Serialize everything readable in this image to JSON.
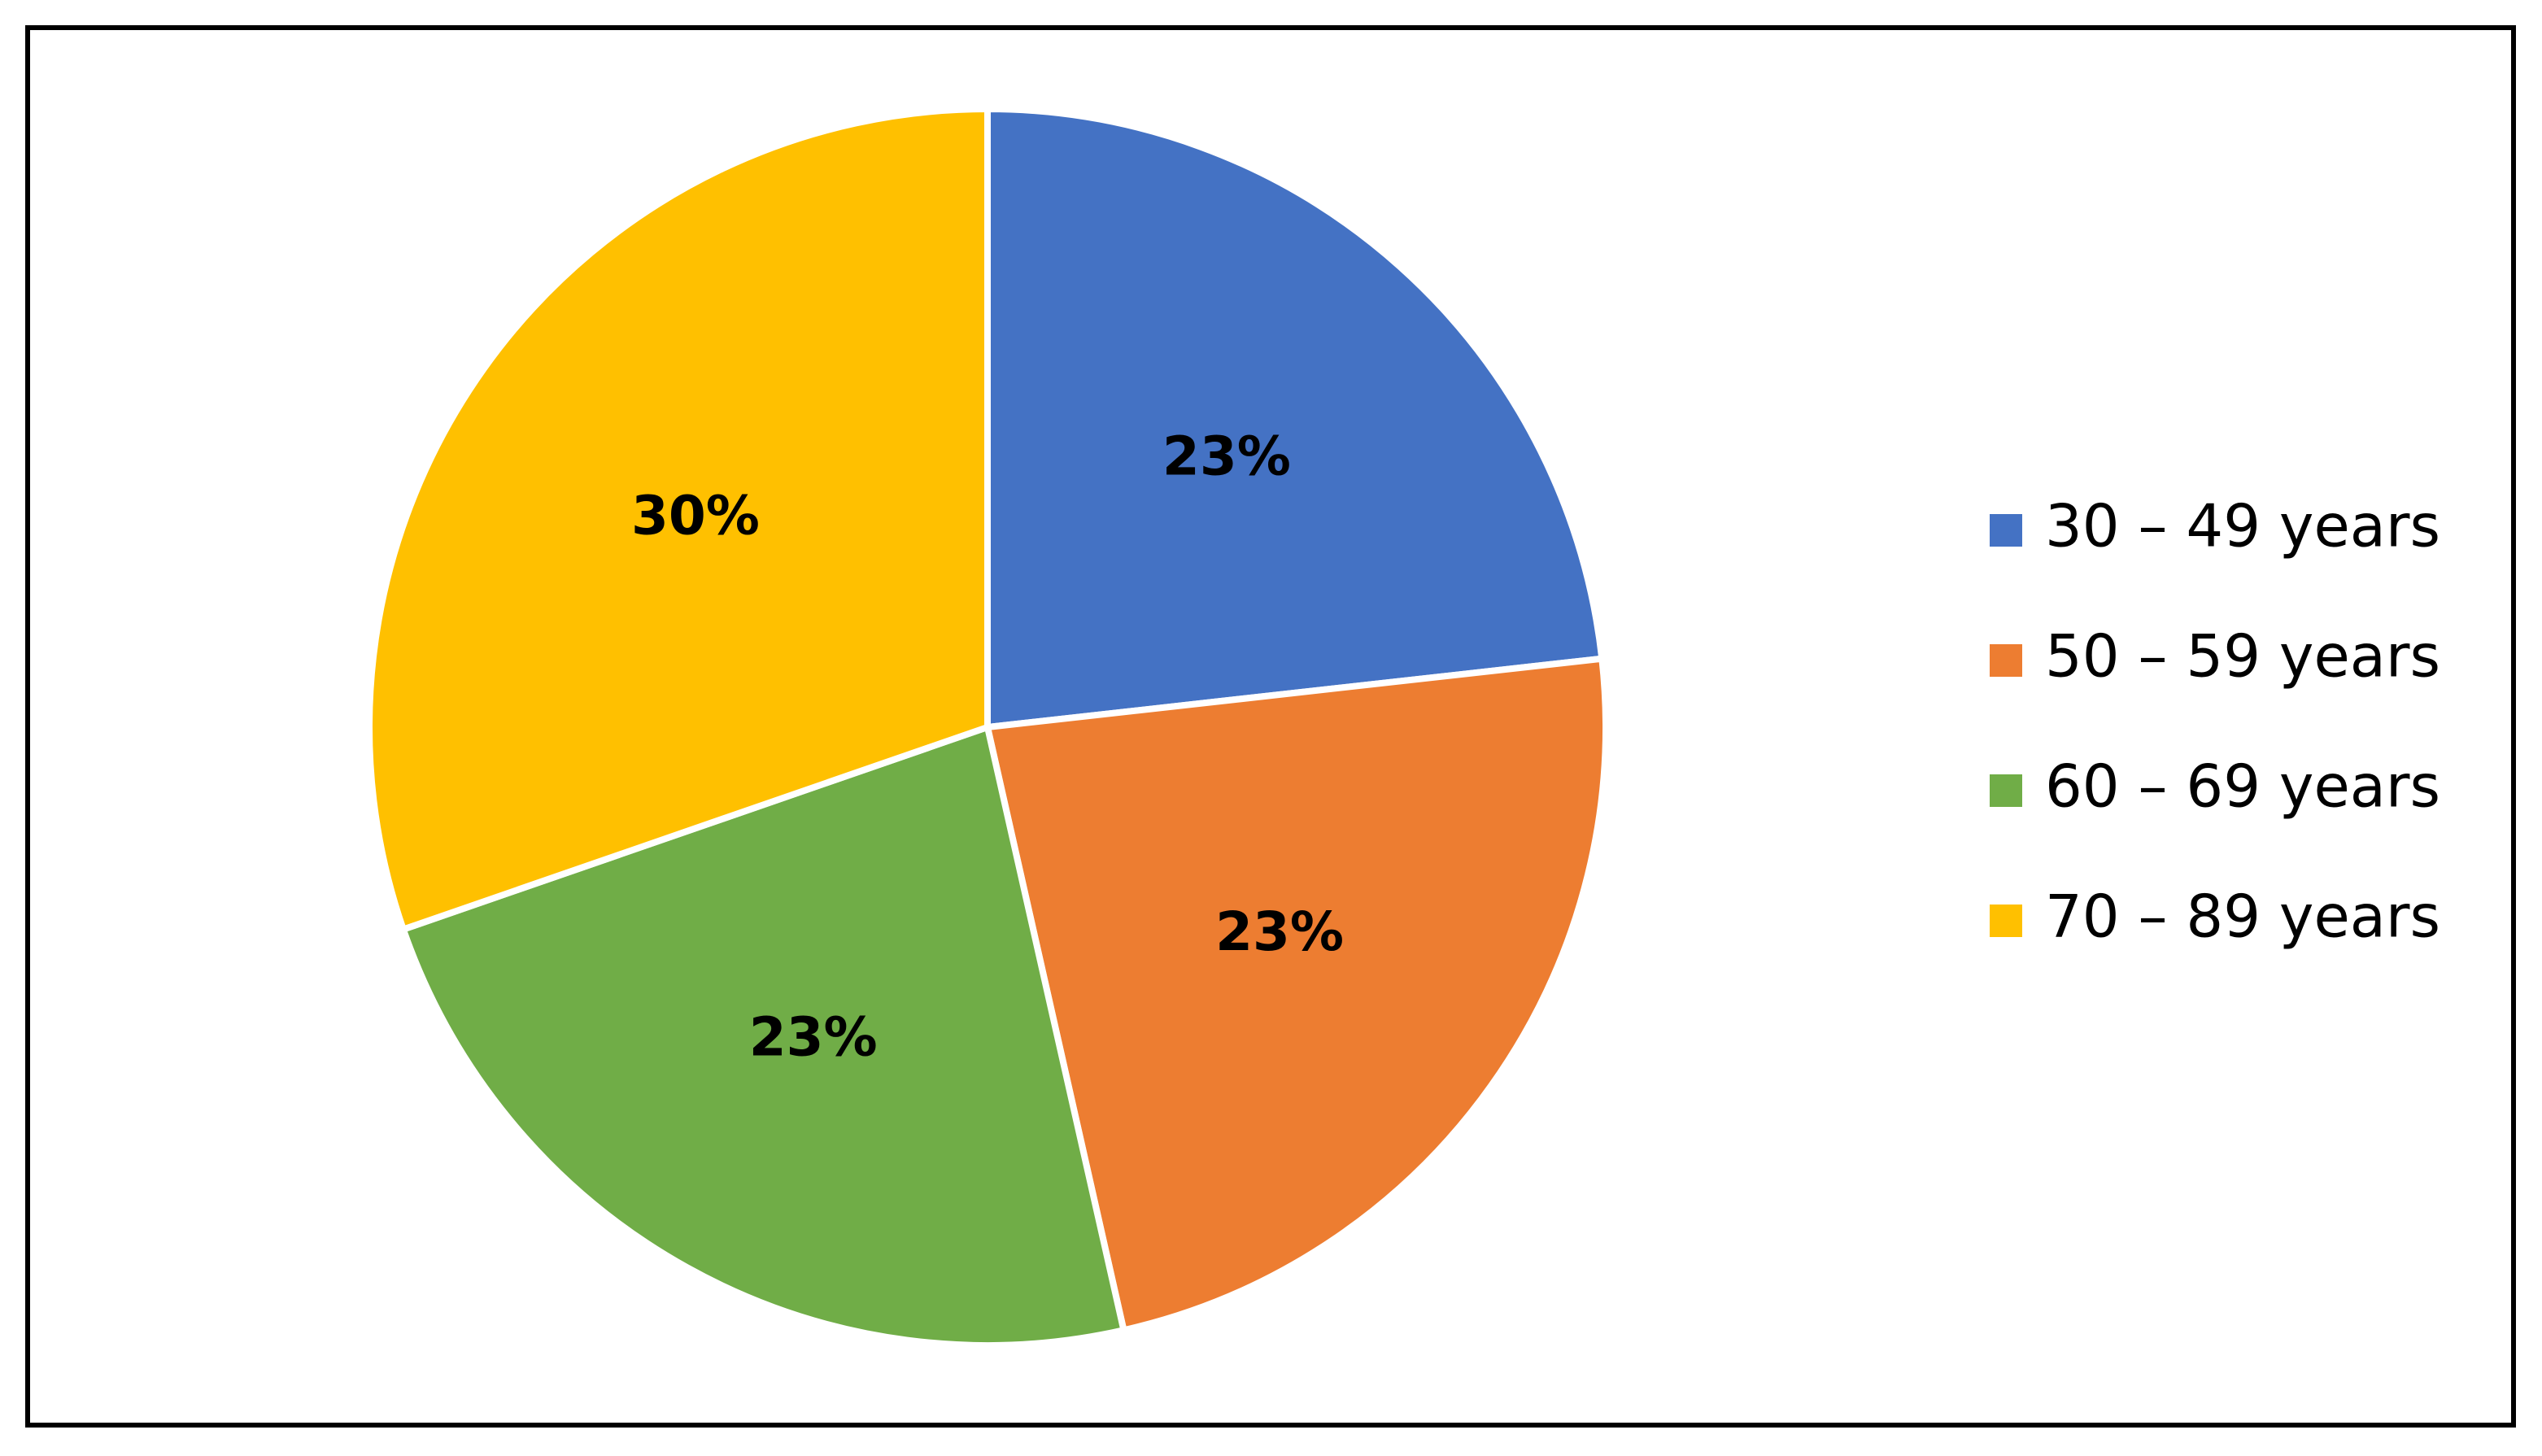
{
  "chart_data": {
    "type": "pie",
    "categories": [
      "30 – 49 years",
      "50 – 59 years",
      "60 – 69 years",
      "70 – 89 years"
    ],
    "values": [
      23,
      23,
      23,
      30
    ],
    "value_labels": [
      "23%",
      "23%",
      "23%",
      "30%"
    ],
    "colors": [
      "#4472c4",
      "#ed7d31",
      "#70ad47",
      "#ffc000"
    ],
    "legend": "right"
  }
}
